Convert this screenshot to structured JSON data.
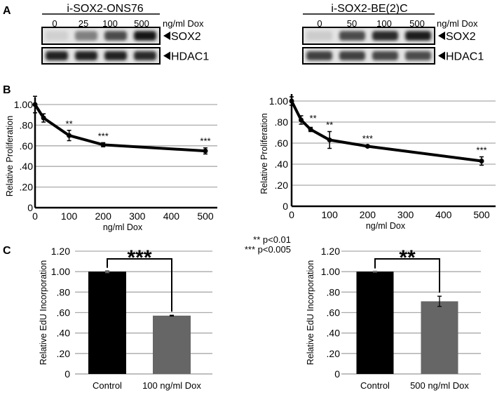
{
  "panels": {
    "a": "A",
    "b": "B",
    "c": "C"
  },
  "western_blots": [
    {
      "title": "i-SOX2-ONS76",
      "dose_unit": "ng/ml Dox",
      "doses": [
        "0",
        "25",
        "100",
        "500"
      ],
      "rows": [
        {
          "label": "SOX2",
          "band_intensity": [
            0.08,
            0.45,
            0.7,
            0.95
          ]
        },
        {
          "label": "HDAC1",
          "band_intensity": [
            0.9,
            0.9,
            0.9,
            0.85
          ]
        }
      ]
    },
    {
      "title": "i-SOX2-BE(2)C",
      "dose_unit": "ng/ml Dox",
      "doses": [
        "0",
        "50",
        "100",
        "500"
      ],
      "rows": [
        {
          "label": "SOX2",
          "band_intensity": [
            0.1,
            0.7,
            0.85,
            0.92
          ]
        },
        {
          "label": "HDAC1",
          "band_intensity": [
            0.75,
            0.75,
            0.72,
            0.7
          ]
        }
      ]
    }
  ],
  "significance_legend": [
    "** p<0.01",
    "*** p<0.005"
  ],
  "chart_data": [
    {
      "type": "line",
      "xlabel": "ng/ml Dox",
      "ylabel": "Relative Proliferation",
      "xlim": [
        0,
        500
      ],
      "ylim": [
        0,
        1.0
      ],
      "xticks": [
        "0",
        "100",
        "200",
        "300",
        "400",
        "500"
      ],
      "yticks": [
        "0",
        ".20",
        ".40",
        ".60",
        ".80",
        "1.00"
      ],
      "grid": true,
      "x": [
        0,
        25,
        100,
        200,
        500
      ],
      "y": [
        1.0,
        0.87,
        0.7,
        0.61,
        0.55
      ],
      "error": [
        0.08,
        0.04,
        0.05,
        0.02,
        0.03
      ],
      "annotations": [
        "",
        "",
        "**",
        "***",
        "***"
      ]
    },
    {
      "type": "line",
      "xlabel": "ng/ml Dox",
      "ylabel": "Relative Proliferation",
      "xlim": [
        0,
        500
      ],
      "ylim": [
        0,
        1.0
      ],
      "xticks": [
        "0",
        "100",
        "200",
        "300",
        "400",
        "500"
      ],
      "yticks": [
        "0",
        ".20",
        ".40",
        ".60",
        ".80",
        "1.00"
      ],
      "grid": true,
      "x": [
        0,
        25,
        50,
        100,
        200,
        500
      ],
      "y": [
        1.0,
        0.82,
        0.73,
        0.63,
        0.57,
        0.43
      ],
      "error": [
        0.04,
        0.04,
        0.02,
        0.08,
        0.01,
        0.04
      ],
      "annotations": [
        "",
        "**",
        "",
        "**",
        "***",
        "***"
      ]
    },
    {
      "type": "bar",
      "ylabel": "Relative EdU Incorporation",
      "ylim": [
        0,
        1.2
      ],
      "yticks": [
        "0",
        ".20",
        ".40",
        ".60",
        ".80",
        "1.00",
        "1.20"
      ],
      "grid": true,
      "categories": [
        "Control",
        "100 ng/ml Dox"
      ],
      "values": [
        1.0,
        0.57
      ],
      "error": [
        0.01,
        0.004
      ],
      "colors": [
        "#000000",
        "#666666"
      ],
      "significance": "***"
    },
    {
      "type": "bar",
      "ylabel": "Relative EdU Incorporation",
      "ylim": [
        0,
        1.2
      ],
      "yticks": [
        "0",
        ".20",
        ".40",
        ".60",
        ".80",
        "1.00",
        "1.20"
      ],
      "grid": true,
      "categories": [
        "Control",
        "500 ng/ml Dox"
      ],
      "values": [
        1.0,
        0.71
      ],
      "error": [
        0.004,
        0.05
      ],
      "colors": [
        "#000000",
        "#666666"
      ],
      "significance": "**"
    }
  ]
}
